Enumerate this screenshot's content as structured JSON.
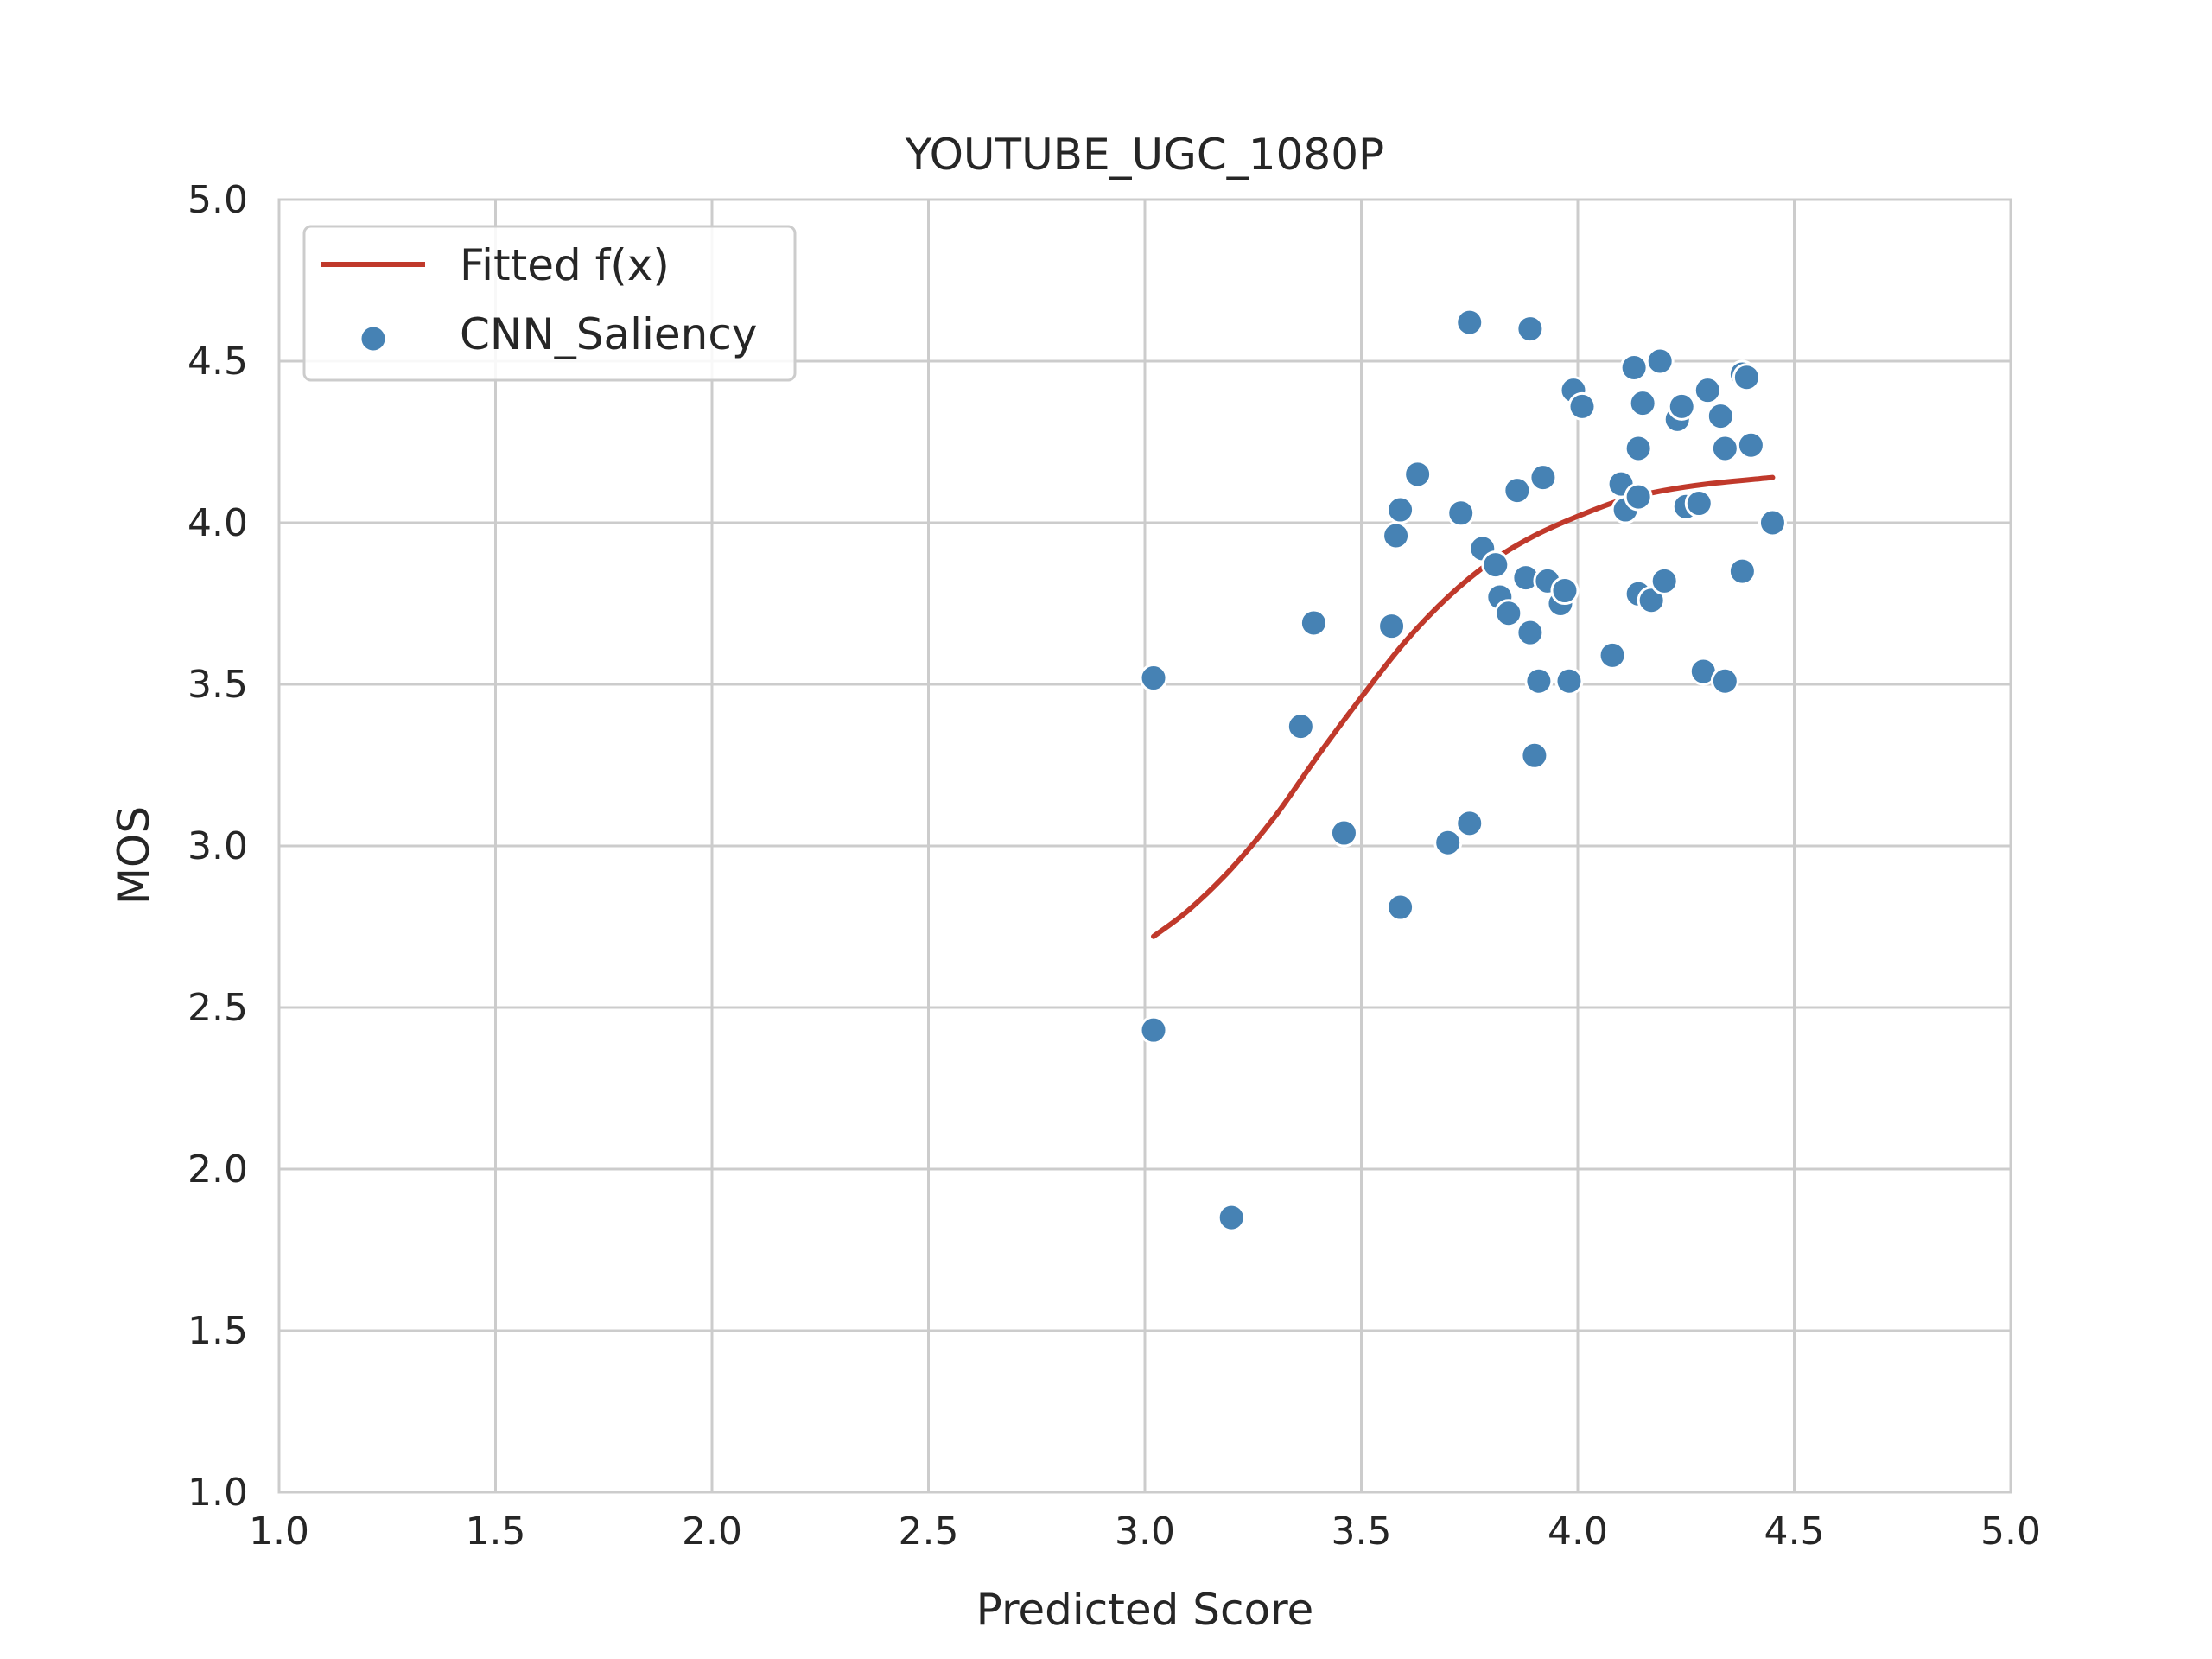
{
  "chart_data": {
    "type": "scatter",
    "title": "YOUTUBE_UGC_1080P",
    "xlabel": "Predicted Score",
    "ylabel": "MOS",
    "xlim": [
      1.0,
      5.0
    ],
    "ylim": [
      1.0,
      5.0
    ],
    "xticks": [
      "1.0",
      "1.5",
      "2.0",
      "2.5",
      "3.0",
      "3.5",
      "4.0",
      "4.5",
      "5.0"
    ],
    "yticks": [
      "1.0",
      "1.5",
      "2.0",
      "2.5",
      "3.0",
      "3.5",
      "4.0",
      "4.5",
      "5.0"
    ],
    "grid": true,
    "legend_position": "top-left",
    "colors": {
      "fit_line": "#c0392b",
      "points": "#4682b4",
      "point_edge": "#ffffff",
      "grid": "#cccccc"
    },
    "series": [
      {
        "name": "Fitted f(x)",
        "kind": "line",
        "x": [
          3.02,
          3.1,
          3.2,
          3.3,
          3.4,
          3.5,
          3.6,
          3.7,
          3.8,
          3.9,
          4.0,
          4.1,
          4.2,
          4.3,
          4.45
        ],
        "y": [
          2.72,
          2.8,
          2.93,
          3.09,
          3.28,
          3.46,
          3.63,
          3.77,
          3.88,
          3.96,
          4.02,
          4.07,
          4.1,
          4.12,
          4.14
        ]
      },
      {
        "name": "CNN_Saliency",
        "kind": "scatter",
        "points": [
          [
            3.02,
            3.52
          ],
          [
            3.02,
            2.43
          ],
          [
            3.2,
            1.85
          ],
          [
            3.36,
            3.37
          ],
          [
            3.39,
            3.69
          ],
          [
            3.46,
            3.04
          ],
          [
            3.57,
            3.68
          ],
          [
            3.58,
            3.96
          ],
          [
            3.59,
            4.04
          ],
          [
            3.59,
            2.81
          ],
          [
            3.63,
            4.15
          ],
          [
            3.7,
            3.01
          ],
          [
            3.73,
            4.03
          ],
          [
            3.75,
            3.07
          ],
          [
            3.75,
            4.62
          ],
          [
            3.78,
            3.92
          ],
          [
            3.81,
            3.87
          ],
          [
            3.82,
            3.77
          ],
          [
            3.84,
            3.72
          ],
          [
            3.86,
            4.1
          ],
          [
            3.88,
            3.83
          ],
          [
            3.89,
            3.66
          ],
          [
            3.89,
            4.6
          ],
          [
            3.9,
            3.28
          ],
          [
            3.91,
            3.51
          ],
          [
            3.92,
            4.14
          ],
          [
            3.93,
            3.82
          ],
          [
            3.96,
            3.75
          ],
          [
            3.97,
            3.79
          ],
          [
            3.98,
            3.51
          ],
          [
            3.99,
            4.41
          ],
          [
            4.01,
            4.36
          ],
          [
            4.08,
            3.59
          ],
          [
            4.1,
            4.12
          ],
          [
            4.11,
            4.04
          ],
          [
            4.13,
            4.48
          ],
          [
            4.14,
            4.23
          ],
          [
            4.14,
            4.08
          ],
          [
            4.14,
            3.78
          ],
          [
            4.15,
            4.37
          ],
          [
            4.17,
            3.76
          ],
          [
            4.19,
            4.5
          ],
          [
            4.2,
            3.82
          ],
          [
            4.23,
            4.32
          ],
          [
            4.24,
            4.36
          ],
          [
            4.25,
            4.05
          ],
          [
            4.28,
            4.06
          ],
          [
            4.29,
            3.54
          ],
          [
            4.3,
            4.41
          ],
          [
            4.33,
            4.33
          ],
          [
            4.34,
            4.23
          ],
          [
            4.34,
            3.51
          ],
          [
            4.38,
            4.46
          ],
          [
            4.38,
            3.85
          ],
          [
            4.39,
            4.45
          ],
          [
            4.4,
            4.24
          ],
          [
            4.45,
            4.0
          ]
        ]
      }
    ]
  }
}
